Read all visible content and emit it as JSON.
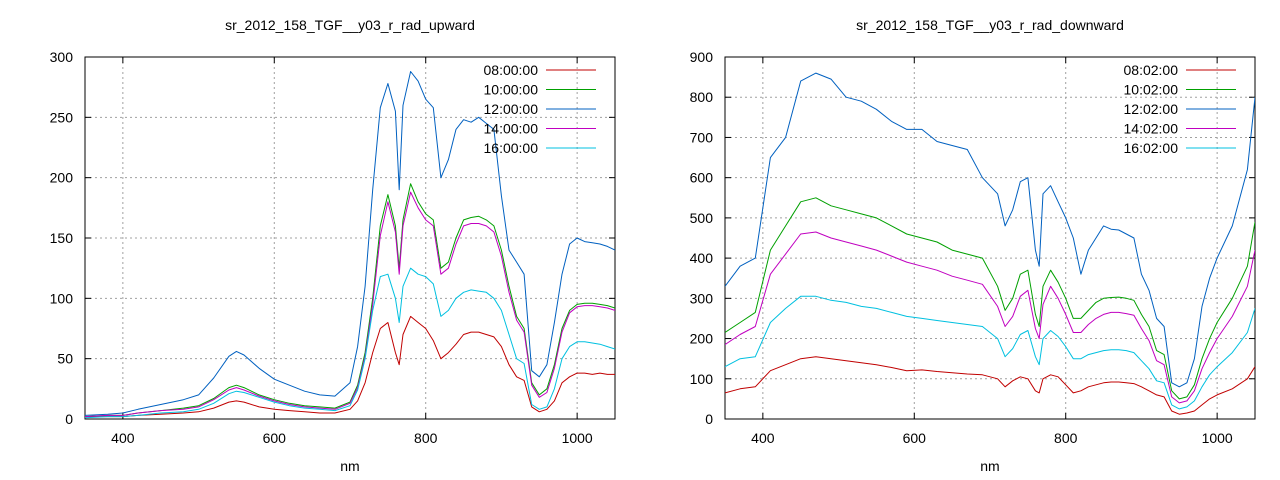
{
  "chart_data": [
    {
      "type": "line",
      "title": "sr_2012_158_TGF__y03_r_rad_upward",
      "xlabel": "nm",
      "ylabel": "",
      "xlim": [
        350,
        1050
      ],
      "ylim": [
        0,
        300
      ],
      "xticks": [
        400,
        600,
        800,
        1000
      ],
      "yticks": [
        0,
        50,
        100,
        150,
        200,
        250,
        300
      ],
      "grid": true,
      "legend": "top-right",
      "x": [
        350,
        380,
        400,
        420,
        450,
        480,
        500,
        520,
        540,
        550,
        560,
        580,
        600,
        620,
        640,
        660,
        680,
        700,
        710,
        720,
        730,
        740,
        750,
        760,
        765,
        770,
        780,
        790,
        800,
        810,
        820,
        830,
        840,
        850,
        860,
        870,
        880,
        890,
        900,
        910,
        920,
        930,
        940,
        950,
        960,
        970,
        980,
        990,
        1000,
        1010,
        1020,
        1030,
        1040,
        1050
      ],
      "series": [
        {
          "name": "08:00:00",
          "color": "#c00000",
          "values": [
            2,
            2,
            2,
            3,
            4,
            5,
            6,
            9,
            14,
            15,
            14,
            10,
            8,
            7,
            6,
            5,
            5,
            8,
            15,
            30,
            55,
            75,
            80,
            55,
            45,
            70,
            85,
            80,
            75,
            65,
            50,
            55,
            62,
            70,
            72,
            72,
            70,
            68,
            60,
            45,
            35,
            32,
            10,
            6,
            8,
            15,
            30,
            35,
            38,
            38,
            37,
            38,
            37,
            37
          ]
        },
        {
          "name": "10:00:00",
          "color": "#00a000",
          "values": [
            2,
            3,
            3,
            5,
            7,
            9,
            11,
            17,
            26,
            28,
            26,
            20,
            16,
            13,
            11,
            10,
            9,
            14,
            28,
            55,
            100,
            160,
            186,
            160,
            125,
            165,
            195,
            180,
            170,
            165,
            125,
            130,
            150,
            165,
            167,
            168,
            165,
            160,
            140,
            110,
            85,
            75,
            30,
            20,
            25,
            45,
            75,
            90,
            95,
            96,
            96,
            95,
            94,
            92
          ]
        },
        {
          "name": "12:00:00",
          "color": "#0060c0",
          "values": [
            3,
            4,
            5,
            8,
            12,
            16,
            20,
            34,
            52,
            56,
            53,
            42,
            33,
            28,
            23,
            20,
            19,
            30,
            60,
            110,
            190,
            258,
            278,
            255,
            190,
            260,
            288,
            280,
            265,
            258,
            200,
            215,
            240,
            248,
            246,
            250,
            245,
            240,
            185,
            140,
            130,
            120,
            40,
            35,
            45,
            80,
            120,
            145,
            150,
            147,
            146,
            145,
            143,
            140
          ]
        },
        {
          "name": "14:00:00",
          "color": "#c000c0",
          "values": [
            2,
            3,
            3,
            5,
            7,
            8,
            10,
            16,
            24,
            26,
            24,
            19,
            15,
            12,
            10,
            9,
            8,
            13,
            26,
            52,
            95,
            152,
            180,
            155,
            120,
            160,
            188,
            175,
            165,
            160,
            120,
            125,
            145,
            160,
            162,
            162,
            160,
            155,
            135,
            105,
            82,
            72,
            28,
            18,
            22,
            42,
            72,
            88,
            93,
            94,
            94,
            93,
            92,
            90
          ]
        },
        {
          "name": "16:00:00",
          "color": "#00c0e0",
          "values": [
            1,
            2,
            2,
            3,
            5,
            6,
            8,
            13,
            21,
            23,
            22,
            18,
            14,
            11,
            9,
            8,
            7,
            11,
            24,
            50,
            90,
            118,
            120,
            100,
            80,
            110,
            125,
            120,
            118,
            112,
            85,
            90,
            100,
            105,
            107,
            106,
            105,
            100,
            90,
            70,
            50,
            46,
            12,
            8,
            10,
            25,
            50,
            60,
            64,
            64,
            63,
            62,
            60,
            58
          ]
        }
      ]
    },
    {
      "type": "line",
      "title": "sr_2012_158_TGF__y03_r_rad_downward",
      "xlabel": "nm",
      "ylabel": "",
      "xlim": [
        350,
        1050
      ],
      "ylim": [
        0,
        900
      ],
      "xticks": [
        400,
        600,
        800,
        1000
      ],
      "yticks": [
        0,
        100,
        200,
        300,
        400,
        500,
        600,
        700,
        800,
        900
      ],
      "grid": true,
      "legend": "top-right",
      "x": [
        350,
        370,
        390,
        410,
        430,
        450,
        470,
        490,
        510,
        530,
        550,
        570,
        590,
        610,
        630,
        650,
        670,
        690,
        710,
        720,
        730,
        740,
        750,
        760,
        765,
        770,
        780,
        790,
        800,
        810,
        820,
        830,
        840,
        850,
        860,
        870,
        880,
        890,
        900,
        910,
        920,
        930,
        940,
        950,
        960,
        970,
        980,
        990,
        1000,
        1020,
        1040,
        1050
      ],
      "series": [
        {
          "name": "08:02:00",
          "color": "#c00000",
          "values": [
            65,
            75,
            80,
            120,
            135,
            150,
            155,
            150,
            145,
            140,
            135,
            128,
            120,
            122,
            118,
            115,
            112,
            110,
            100,
            80,
            95,
            105,
            100,
            70,
            65,
            100,
            110,
            105,
            85,
            65,
            70,
            80,
            85,
            90,
            92,
            92,
            90,
            88,
            80,
            70,
            60,
            55,
            20,
            12,
            15,
            20,
            35,
            50,
            60,
            75,
            100,
            130
          ]
        },
        {
          "name": "10:02:00",
          "color": "#00a000",
          "values": [
            215,
            240,
            265,
            420,
            480,
            540,
            550,
            530,
            520,
            510,
            500,
            480,
            460,
            450,
            440,
            420,
            410,
            400,
            330,
            270,
            300,
            360,
            370,
            260,
            230,
            330,
            370,
            340,
            300,
            250,
            250,
            270,
            290,
            300,
            302,
            303,
            300,
            295,
            260,
            230,
            170,
            160,
            70,
            50,
            55,
            85,
            150,
            200,
            240,
            300,
            380,
            490
          ]
        },
        {
          "name": "12:02:00",
          "color": "#0060c0",
          "values": [
            330,
            380,
            400,
            650,
            700,
            840,
            860,
            845,
            800,
            790,
            770,
            740,
            720,
            720,
            690,
            680,
            670,
            600,
            560,
            480,
            520,
            590,
            600,
            420,
            380,
            560,
            580,
            540,
            500,
            450,
            360,
            420,
            450,
            480,
            472,
            470,
            460,
            450,
            360,
            320,
            250,
            230,
            90,
            80,
            90,
            150,
            280,
            350,
            400,
            480,
            620,
            800
          ]
        },
        {
          "name": "14:02:00",
          "color": "#c000c0",
          "values": [
            185,
            210,
            230,
            360,
            410,
            460,
            465,
            450,
            440,
            430,
            420,
            405,
            390,
            380,
            370,
            355,
            345,
            335,
            280,
            230,
            255,
            305,
            320,
            225,
            200,
            285,
            330,
            300,
            260,
            215,
            215,
            235,
            250,
            260,
            265,
            265,
            262,
            258,
            225,
            195,
            145,
            135,
            55,
            40,
            45,
            70,
            125,
            165,
            200,
            255,
            330,
            420
          ]
        },
        {
          "name": "16:02:00",
          "color": "#00c0e0",
          "values": [
            130,
            150,
            155,
            240,
            275,
            305,
            305,
            295,
            290,
            280,
            275,
            265,
            255,
            250,
            245,
            240,
            235,
            230,
            200,
            155,
            175,
            210,
            220,
            155,
            135,
            200,
            220,
            205,
            180,
            150,
            150,
            160,
            165,
            170,
            172,
            172,
            170,
            165,
            145,
            125,
            95,
            90,
            35,
            25,
            30,
            45,
            80,
            110,
            130,
            165,
            215,
            275
          ]
        }
      ]
    }
  ]
}
